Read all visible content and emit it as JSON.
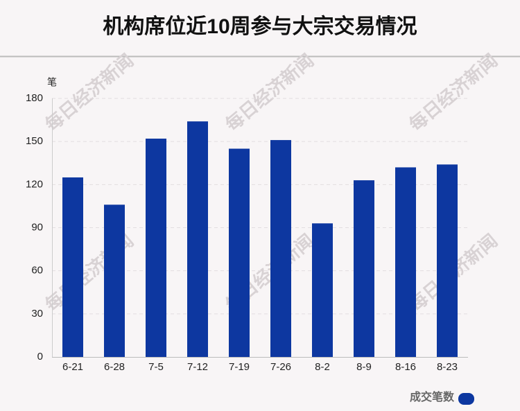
{
  "chart_data": {
    "type": "bar",
    "title": "机构席位近10周参与大宗交易情况",
    "y_label": "笔",
    "categories": [
      "6-21",
      "6-28",
      "7-5",
      "7-12",
      "7-19",
      "7-26",
      "8-2",
      "8-9",
      "8-16",
      "8-23"
    ],
    "series": [
      {
        "name": "成交笔数",
        "color": "#0d37a0",
        "values": [
          125,
          106,
          152,
          164,
          145,
          151,
          93,
          123,
          132,
          134
        ]
      }
    ],
    "ylim": [
      0,
      180
    ],
    "yticks": [
      0,
      30,
      60,
      90,
      120,
      150,
      180
    ],
    "grid": true,
    "legend": "bottom-right",
    "watermark": "每日经济新闻"
  }
}
